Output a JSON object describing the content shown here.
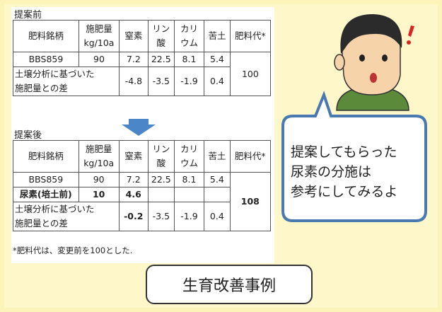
{
  "before": {
    "label": "提案前",
    "header": [
      "肥料銘柄",
      "施肥量\nkg/10a",
      "窒素",
      "リン\n酸",
      "カリ\nウム",
      "苦土",
      "肥料代*"
    ],
    "rows": [
      [
        "BBS859",
        90,
        7.2,
        22.5,
        8.1,
        5.4,
        100
      ],
      [
        "土壌分析に基づいた\n施肥量との差",
        -4.8,
        -3.5,
        -1.9,
        0.4
      ]
    ]
  },
  "after": {
    "label": "提案後",
    "header": [
      "肥料銘柄",
      "施肥量\nkg/10a",
      "窒素",
      "リン\n酸",
      "カリ\nウム",
      "苦土",
      "肥料代*"
    ],
    "rows": [
      [
        "BBS859",
        90,
        7.2,
        22.5,
        8.1,
        5.4,
        108
      ],
      [
        "尿素(培土前)",
        10,
        4.6
      ],
      [
        "土壌分析に基づいた\n施肥量との差",
        -0.2,
        -3.5,
        -1.9,
        0.4
      ]
    ]
  },
  "note": "*肥料代は、変更前を100とした.",
  "speech": [
    "提案してもらった",
    "尿素の分施は",
    "参考にしてみるよ"
  ],
  "caption": "生育改善事例"
}
